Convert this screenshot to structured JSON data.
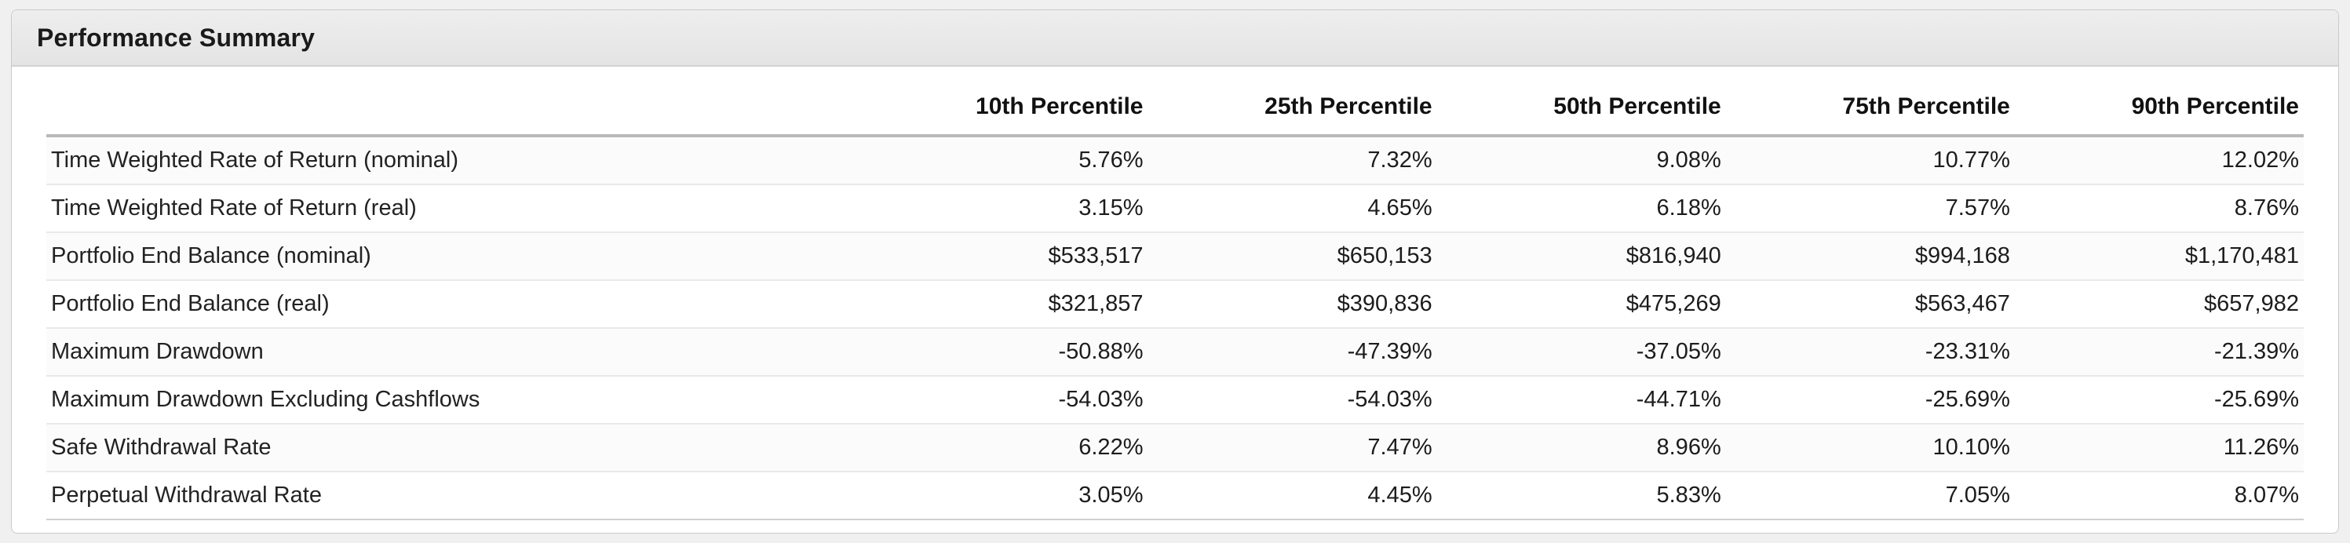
{
  "panel": {
    "title": "Performance Summary"
  },
  "table": {
    "metric_header": "",
    "columns": [
      "10th Percentile",
      "25th Percentile",
      "50th Percentile",
      "75th Percentile",
      "90th Percentile"
    ],
    "rows": [
      {
        "label": "Time Weighted Rate of Return (nominal)",
        "values": [
          "5.76%",
          "7.32%",
          "9.08%",
          "10.77%",
          "12.02%"
        ]
      },
      {
        "label": "Time Weighted Rate of Return (real)",
        "values": [
          "3.15%",
          "4.65%",
          "6.18%",
          "7.57%",
          "8.76%"
        ]
      },
      {
        "label": "Portfolio End Balance (nominal)",
        "values": [
          "$533,517",
          "$650,153",
          "$816,940",
          "$994,168",
          "$1,170,481"
        ]
      },
      {
        "label": "Portfolio End Balance (real)",
        "values": [
          "$321,857",
          "$390,836",
          "$475,269",
          "$563,467",
          "$657,982"
        ]
      },
      {
        "label": "Maximum Drawdown",
        "values": [
          "-50.88%",
          "-47.39%",
          "-37.05%",
          "-23.31%",
          "-21.39%"
        ]
      },
      {
        "label": "Maximum Drawdown Excluding Cashflows",
        "values": [
          "-54.03%",
          "-54.03%",
          "-44.71%",
          "-25.69%",
          "-25.69%"
        ]
      },
      {
        "label": "Safe Withdrawal Rate",
        "values": [
          "6.22%",
          "7.47%",
          "8.96%",
          "10.10%",
          "11.26%"
        ]
      },
      {
        "label": "Perpetual Withdrawal Rate",
        "values": [
          "3.05%",
          "4.45%",
          "5.83%",
          "7.05%",
          "8.07%"
        ]
      }
    ]
  },
  "colors": {
    "page_background": "#f0f0f1",
    "panel_background": "#ffffff",
    "panel_border": "#c9c9c9",
    "header_gradient_top": "#eeeeee",
    "header_gradient_bottom": "#e4e4e4",
    "header_rule": "#b9b9b9",
    "row_divider": "#e9e9e9",
    "text": "#1c1c1c"
  }
}
